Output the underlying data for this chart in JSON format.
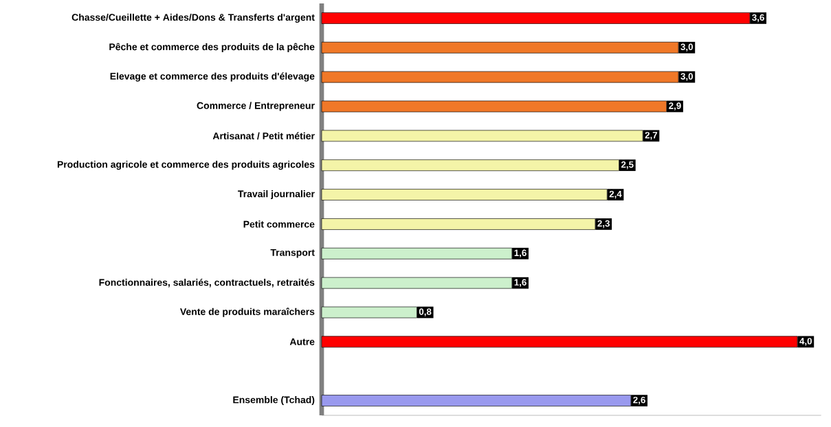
{
  "chart_data": {
    "type": "bar",
    "orientation": "horizontal",
    "categories": [
      "Chasse/Cueillette + Aides/Dons & Transferts d'argent",
      "Pêche et commerce des produits de la pêche",
      "Elevage et commerce des produits d'élevage",
      "Commerce / Entrepreneur",
      "Artisanat / Petit métier",
      "Production agricole et commerce des produits agricoles",
      "Travail journalier",
      "Petit commerce",
      "Transport",
      "Fonctionnaires, salariés, contractuels, retraités",
      "Vente de produits maraîchers",
      "Autre",
      null,
      "Ensemble (Tchad)"
    ],
    "values": [
      3.6,
      3.0,
      3.0,
      2.9,
      2.7,
      2.5,
      2.4,
      2.3,
      1.6,
      1.6,
      0.8,
      4.0,
      null,
      2.6
    ],
    "value_labels": [
      "3,6",
      "3,0",
      "3,0",
      "2,9",
      "2,7",
      "2,5",
      "2,4",
      "2,3",
      "1,6",
      "1,6",
      "0,8",
      "4,0",
      null,
      "2,6"
    ],
    "colors": [
      "#ff0000",
      "#f07828",
      "#f07828",
      "#f07828",
      "#f4f4a8",
      "#f4f4a8",
      "#f4f4a8",
      "#f4f4a8",
      "#ccf0cc",
      "#ccf0cc",
      "#ccf0cc",
      "#ff0000",
      null,
      "#9999ee"
    ]
  }
}
